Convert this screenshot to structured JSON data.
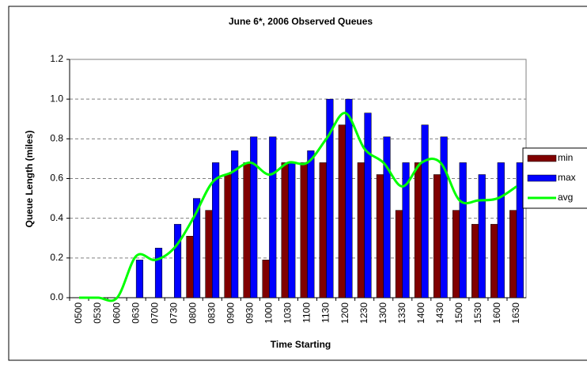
{
  "chart_data": {
    "type": "bar",
    "title": "June 6*, 2006 Observed Queues",
    "x_label": "Time Starting",
    "y_label": "Queue Length (miles)",
    "categories": [
      "0500",
      "0530",
      "0600",
      "0630",
      "0700",
      "0730",
      "0800",
      "0830",
      "0900",
      "0930",
      "1000",
      "1030",
      "1100",
      "1130",
      "1200",
      "1230",
      "1300",
      "1330",
      "1400",
      "1430",
      "1500",
      "1530",
      "1600",
      "1630"
    ],
    "series": [
      {
        "name": "min",
        "type": "bar",
        "color": "#800000",
        "values": [
          0,
          0,
          0,
          0,
          0,
          0,
          0.31,
          0.44,
          0.62,
          0.68,
          0.19,
          0.68,
          0.68,
          0.68,
          0.87,
          0.68,
          0.62,
          0.44,
          0.68,
          0.62,
          0.44,
          0.37,
          0.37,
          0.44
        ]
      },
      {
        "name": "max",
        "type": "bar",
        "color": "#0000ff",
        "values": [
          0,
          0,
          0,
          0.19,
          0.25,
          0.37,
          0.5,
          0.68,
          0.74,
          0.81,
          0.81,
          0.68,
          0.74,
          1.0,
          1.0,
          0.93,
          0.81,
          0.68,
          0.87,
          0.81,
          0.68,
          0.62,
          0.68,
          0.68
        ]
      },
      {
        "name": "avg",
        "type": "line",
        "color": "#00ff00",
        "values": [
          0,
          0,
          0,
          0.21,
          0.19,
          0.25,
          0.4,
          0.58,
          0.63,
          0.68,
          0.62,
          0.68,
          0.68,
          0.8,
          0.93,
          0.75,
          0.68,
          0.56,
          0.68,
          0.68,
          0.49,
          0.49,
          0.5,
          0.56
        ]
      }
    ],
    "ylim": [
      0,
      1.2
    ],
    "yticks": [
      {
        "value": 0,
        "label": "0.0"
      },
      0.2,
      0.4,
      0.6,
      0.8,
      {
        "value": 1,
        "label": "1.0"
      },
      1.2
    ],
    "grid": true,
    "legend": "right"
  }
}
